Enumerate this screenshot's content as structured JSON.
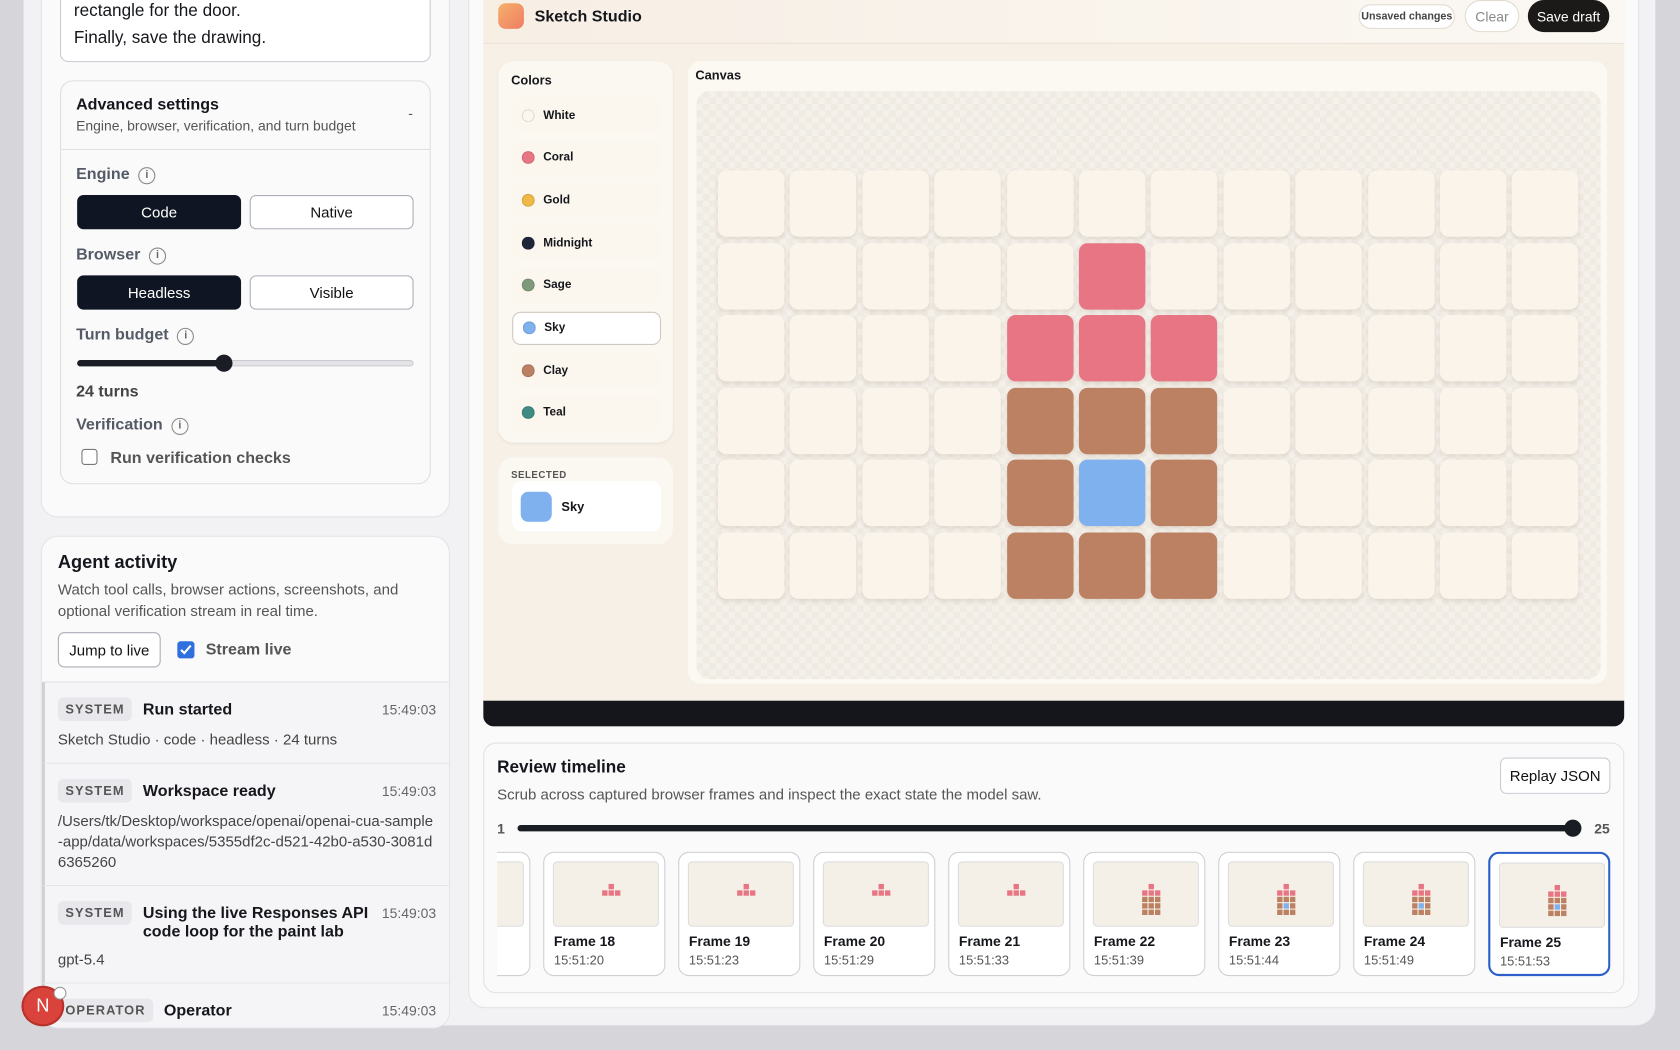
{
  "prompt": {
    "lines": [
      "rectangle for the door.",
      "Finally, save the drawing."
    ]
  },
  "advanced": {
    "title": "Advanced settings",
    "subtitle": "Engine, browser, verification, and turn budget",
    "toggle": "-",
    "info_icon": "i",
    "engine": {
      "label": "Engine",
      "options": [
        "Code",
        "Native"
      ]
    },
    "browser": {
      "label": "Browser",
      "options": [
        "Headless",
        "Visible"
      ]
    },
    "turn_budget": {
      "label": "Turn budget",
      "value_text": "24 turns"
    },
    "verification": {
      "label": "Verification",
      "checkbox": "Run verification checks"
    }
  },
  "activity": {
    "title": "Agent activity",
    "description": "Watch tool calls, browser actions, screenshots, and optional verification stream in real time.",
    "jump": "Jump to live",
    "stream": "Stream live",
    "entries": [
      {
        "badge": "SYSTEM",
        "title": "Run started",
        "time": "15:49:03",
        "detail": "Sketch Studio · code · headless · 24 turns"
      },
      {
        "badge": "SYSTEM",
        "title": "Workspace ready",
        "time": "15:49:03",
        "detail": "/Users/tk/Desktop/workspace/openai/openai-cua-sample-app/data/workspaces/5355df2c-d521-42b0-a530-3081d6365260"
      },
      {
        "badge": "SYSTEM",
        "title": "Using the live Responses API code loop for the paint lab",
        "time": "15:49:03",
        "detail": "gpt-5.4"
      },
      {
        "badge": "OPERATOR",
        "title": "Operator",
        "time": "15:49:03"
      }
    ]
  },
  "avatar": "N",
  "app": {
    "name": "Sketch Studio",
    "status": "Unsaved changes",
    "clear": "Clear",
    "save": "Save draft",
    "colors_title": "Colors",
    "colors": [
      {
        "name": "White",
        "color": "#fbf6ee"
      },
      {
        "name": "Coral",
        "color": "#e87583"
      },
      {
        "name": "Gold",
        "color": "#f0b947"
      },
      {
        "name": "Midnight",
        "color": "#1e2738"
      },
      {
        "name": "Sage",
        "color": "#7f9a7a"
      },
      {
        "name": "Sky",
        "color": "#7fb1ef"
      },
      {
        "name": "Clay",
        "color": "#bc8062"
      },
      {
        "name": "Teal",
        "color": "#3e8b84"
      }
    ],
    "selected_title": "SELECTED",
    "selected": "Sky",
    "canvas_title": "Canvas",
    "cells": [
      [
        null,
        null,
        null,
        null,
        null,
        null,
        null,
        null,
        null,
        null,
        null,
        null
      ],
      [
        null,
        null,
        null,
        null,
        null,
        "Coral",
        null,
        null,
        null,
        null,
        null,
        null
      ],
      [
        null,
        null,
        null,
        null,
        "Coral",
        "Coral",
        "Coral",
        null,
        null,
        null,
        null,
        null
      ],
      [
        null,
        null,
        null,
        null,
        "Clay",
        "Clay",
        "Clay",
        null,
        null,
        null,
        null,
        null
      ],
      [
        null,
        null,
        null,
        null,
        "Clay",
        "Sky",
        "Clay",
        null,
        null,
        null,
        null,
        null
      ],
      [
        null,
        null,
        null,
        null,
        "Clay",
        "Clay",
        "Clay",
        null,
        null,
        null,
        null,
        null
      ]
    ]
  },
  "timeline": {
    "title": "Review timeline",
    "description": "Scrub across captured browser frames and inspect the exact state the model saw.",
    "replay": "Replay JSON",
    "min": "1",
    "max": "25",
    "frames": [
      {
        "label": "Frame 18",
        "time": "15:51:20"
      },
      {
        "label": "Frame 19",
        "time": "15:51:23"
      },
      {
        "label": "Frame 20",
        "time": "15:51:29"
      },
      {
        "label": "Frame 21",
        "time": "15:51:33"
      },
      {
        "label": "Frame 22",
        "time": "15:51:39"
      },
      {
        "label": "Frame 23",
        "time": "15:51:44"
      },
      {
        "label": "Frame 24",
        "time": "15:51:49"
      },
      {
        "label": "Frame 25",
        "time": "15:51:53"
      }
    ]
  }
}
